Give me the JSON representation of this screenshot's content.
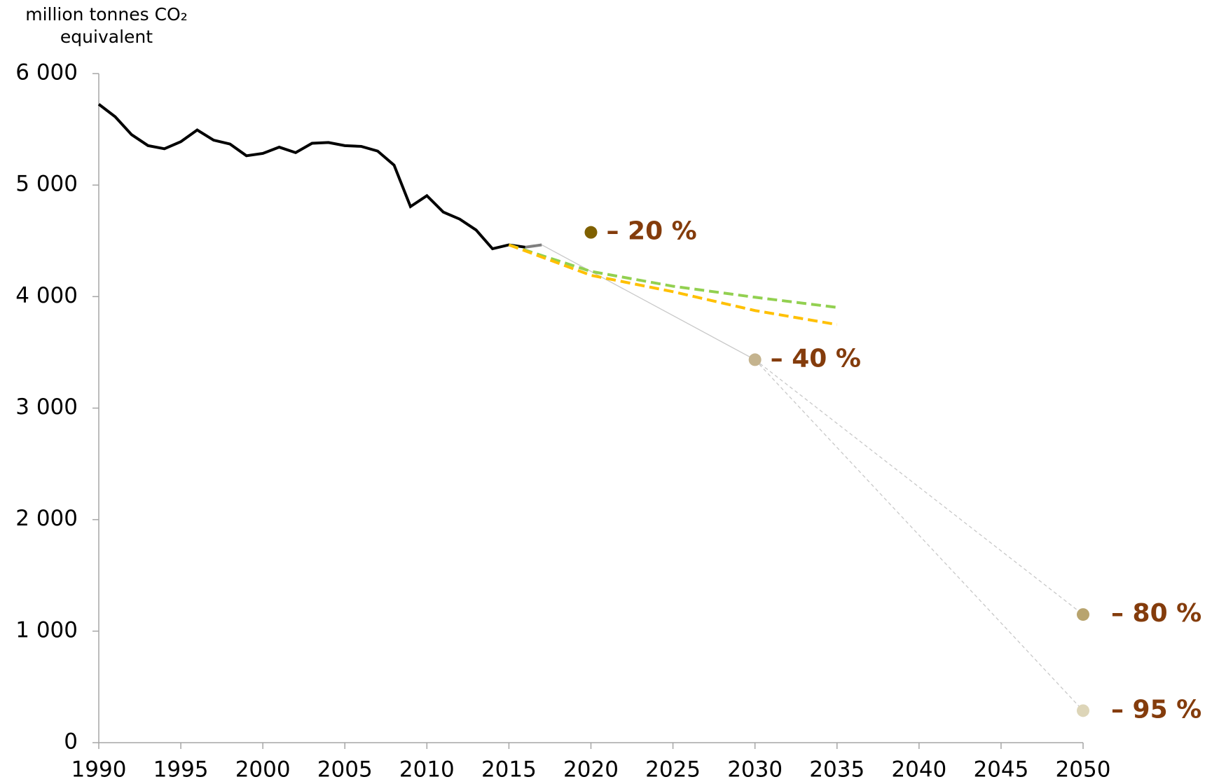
{
  "chart_data": {
    "type": "line",
    "ylabel": [
      "million tonnes CO₂",
      "equivalent"
    ],
    "xlim": [
      1990,
      2050
    ],
    "xticks": [
      1990,
      1995,
      2000,
      2005,
      2010,
      2015,
      2020,
      2025,
      2030,
      2035,
      2040,
      2045,
      2050
    ],
    "ylim": [
      0,
      6000
    ],
    "yticks": [
      0,
      {
        "value": 1000,
        "label": "1 000"
      },
      {
        "value": 2000,
        "label": "2 000"
      },
      {
        "value": 3000,
        "label": "3 000"
      },
      {
        "value": 4000,
        "label": "4 000"
      },
      {
        "value": 5000,
        "label": "5 000"
      },
      {
        "value": 6000,
        "label": "6 000"
      }
    ],
    "series": [
      {
        "color": "#000000",
        "dash": false,
        "x": [
          1990,
          1991,
          1992,
          1993,
          1994,
          1995,
          1996,
          1997,
          1998,
          1999,
          2000,
          2001,
          2002,
          2003,
          2004,
          2005,
          2006,
          2007,
          2008,
          2009,
          2010,
          2011,
          2012,
          2013,
          2014,
          2015,
          2016
        ],
        "values": [
          5725,
          5613,
          5452,
          5354,
          5326,
          5389,
          5494,
          5403,
          5368,
          5263,
          5284,
          5340,
          5291,
          5375,
          5382,
          5354,
          5347,
          5305,
          5179,
          4807,
          4905,
          4758,
          4695,
          4597,
          4429,
          4464,
          4443
        ]
      },
      {
        "color": "#7f7f7f",
        "dash": false,
        "x": [
          2016,
          2017
        ],
        "values": [
          4443,
          4464
        ]
      },
      {
        "color": "#92d050",
        "dash": true,
        "x": [
          2015,
          2020,
          2025,
          2030,
          2035
        ],
        "values": [
          4464,
          4226,
          4093,
          3994,
          3903
        ]
      },
      {
        "color": "#ffc000",
        "dash": true,
        "x": [
          2015,
          2020,
          2025,
          2030,
          2035
        ],
        "values": [
          4464,
          4191,
          4044,
          3875,
          3749
        ]
      }
    ],
    "targets": [
      {
        "x": 2020,
        "value": 4576,
        "label": "– 20 %",
        "color": "#7f6000"
      },
      {
        "x": 2030,
        "value": 3434,
        "label": "– 40 %",
        "color": "#c4b38e"
      },
      {
        "x": 2050,
        "value": 1149,
        "label": "– 80 %",
        "color": "#b8a46e"
      },
      {
        "x": 2050,
        "value": 287,
        "label": "– 95 %",
        "color": "#ddd5b8"
      }
    ],
    "target_label_color": "#843c0c"
  }
}
